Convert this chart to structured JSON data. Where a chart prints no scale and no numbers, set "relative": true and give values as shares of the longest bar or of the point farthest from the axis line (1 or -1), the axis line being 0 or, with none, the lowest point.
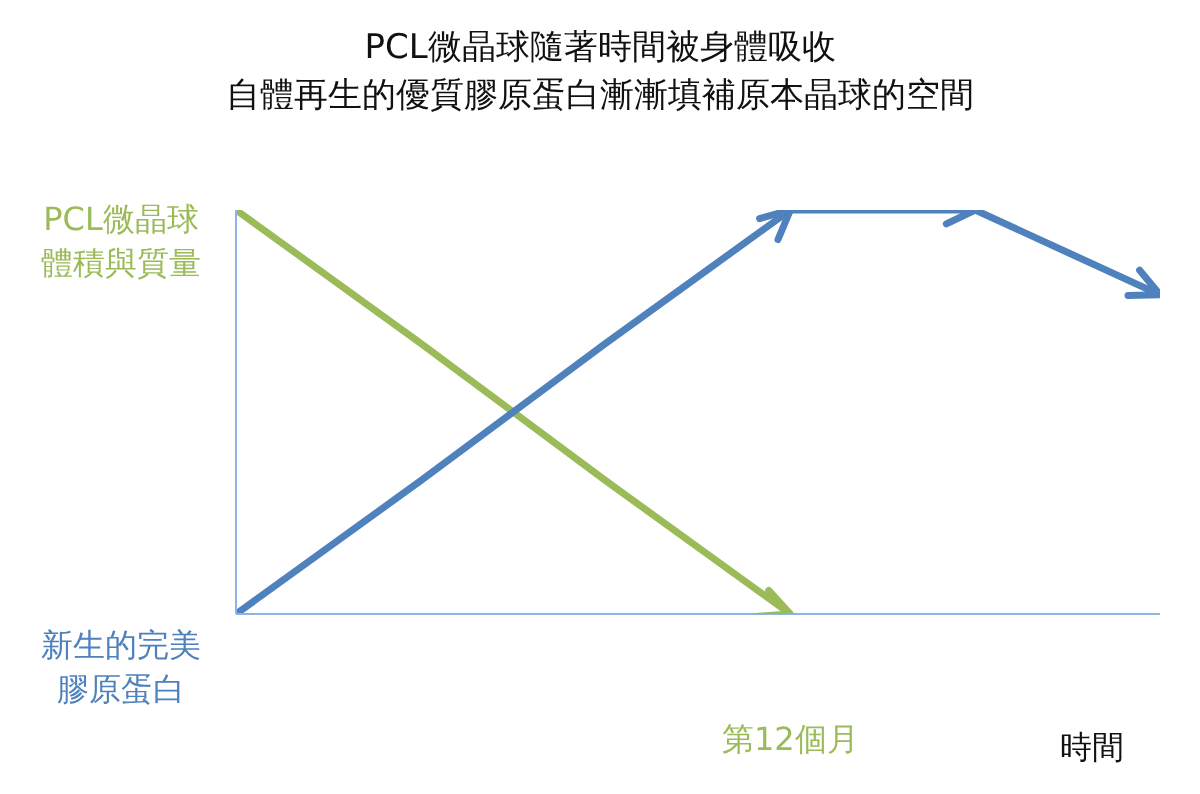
{
  "chart_data": {
    "type": "line",
    "title": "PCL微晶球隨著時間被身體吸收",
    "subtitle": "自體再生的優質膠原蛋白漸漸填補原本晶球的空間",
    "xlabel": "時間",
    "relative": true,
    "marker": "none",
    "line_style": "solid",
    "grid": false,
    "legend": false,
    "categories": [
      null,
      null,
      null,
      null,
      null,
      null
    ],
    "annotations": [
      "第12個月"
    ],
    "series": [
      {
        "name": "PCL微晶球體積與質量",
        "color": "#9bbb59",
        "values": [
          1,
          0.67,
          0.33,
          0,
          null,
          null
        ]
      },
      {
        "name": "新生的完美膠原蛋白",
        "color": "#4f81bd",
        "values": [
          0,
          0.33,
          0.67,
          1,
          1,
          0.79
        ]
      }
    ]
  }
}
